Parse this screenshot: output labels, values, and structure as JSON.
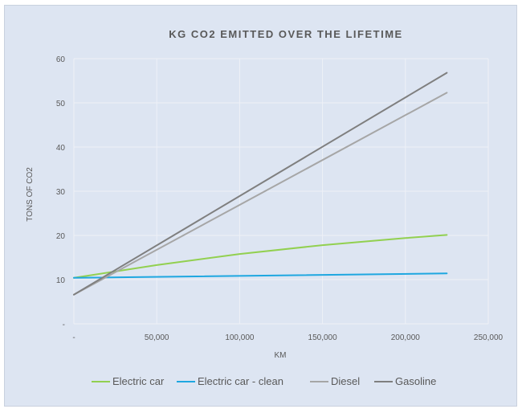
{
  "chart_data": {
    "type": "line",
    "title": "KG CO2 EMITTED OVER THE LIFETIME",
    "xlabel": "KM",
    "ylabel": "TONS OF CO2",
    "xlim": [
      0,
      250000
    ],
    "ylim": [
      0,
      60
    ],
    "x_ticks": [
      {
        "value": 0,
        "label": "-"
      },
      {
        "value": 50000,
        "label": "50,000"
      },
      {
        "value": 100000,
        "label": "100,000"
      },
      {
        "value": 150000,
        "label": "150,000"
      },
      {
        "value": 200000,
        "label": "200,000"
      },
      {
        "value": 250000,
        "label": "250,000"
      }
    ],
    "y_ticks": [
      {
        "value": 0,
        "label": "-"
      },
      {
        "value": 10,
        "label": "10"
      },
      {
        "value": 20,
        "label": "20"
      },
      {
        "value": 30,
        "label": "30"
      },
      {
        "value": 40,
        "label": "40"
      },
      {
        "value": 50,
        "label": "50"
      },
      {
        "value": 60,
        "label": "60"
      }
    ],
    "grid": true,
    "legend_position": "bottom",
    "series": [
      {
        "name": "Electric car",
        "color": "#92d050",
        "x": [
          0,
          50000,
          100000,
          150000,
          200000,
          225000
        ],
        "y": [
          10.4,
          13.3,
          15.8,
          17.8,
          19.4,
          20.1
        ]
      },
      {
        "name": "Electric car - clean",
        "color": "#1ea7e0",
        "x": [
          0,
          225000
        ],
        "y": [
          10.4,
          11.4
        ]
      },
      {
        "name": "Diesel",
        "color": "#a6a6a6",
        "x": [
          0,
          225000
        ],
        "y": [
          6.6,
          52.3
        ]
      },
      {
        "name": "Gasoline",
        "color": "#7f7f7f",
        "x": [
          0,
          225000
        ],
        "y": [
          6.6,
          56.8
        ]
      }
    ]
  }
}
